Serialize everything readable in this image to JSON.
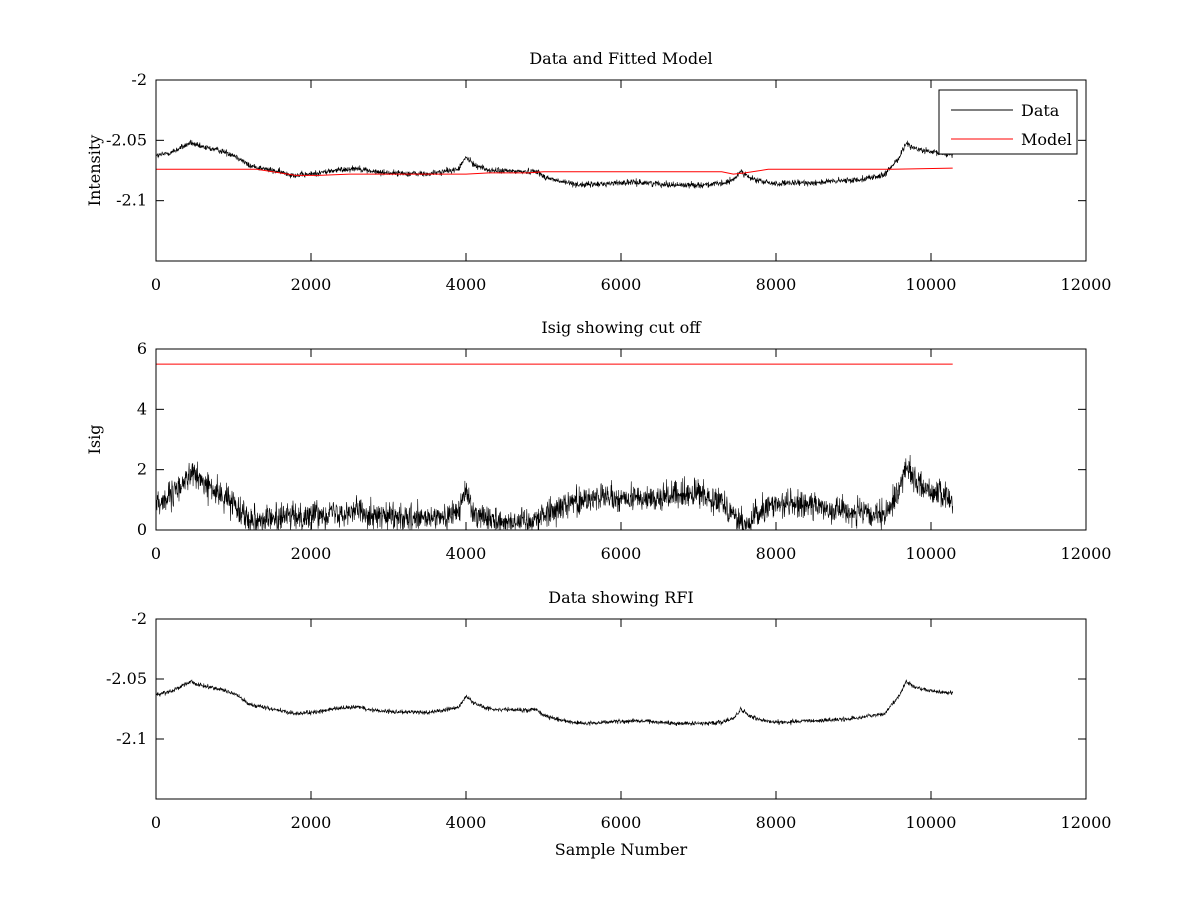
{
  "figure": {
    "background": "#ffffff"
  },
  "chart_data": [
    {
      "id": "panel1",
      "type": "line",
      "title": "Data and Fitted Model",
      "xlabel": "",
      "ylabel": "Intensity",
      "xlim": [
        0,
        12000
      ],
      "ylim": [
        -2.15,
        -2.0
      ],
      "xticks": [
        0,
        2000,
        4000,
        6000,
        8000,
        10000,
        12000
      ],
      "xtick_labels": [
        "0",
        "2000",
        "4000",
        "6000",
        "8000",
        "10000",
        "12000"
      ],
      "yticks": [
        -2.0,
        -2.05,
        -2.1
      ],
      "ytick_labels": [
        "-2",
        "-2.05",
        "-2.1"
      ],
      "legend": {
        "placement": "top-right",
        "entries": [
          {
            "label": "Data",
            "color": "#000000"
          },
          {
            "label": "Model",
            "color": "#ff0000"
          }
        ]
      },
      "series": [
        {
          "name": "Data",
          "color": "#000000",
          "noise": 0.0025,
          "x_max": 10280,
          "envelope_x": [
            0,
            200,
            450,
            550,
            800,
            1000,
            1100,
            1200,
            1500,
            1800,
            2000,
            2300,
            2600,
            2800,
            3000,
            3500,
            3900,
            4000,
            4100,
            4300,
            4800,
            4900,
            5000,
            5200,
            5500,
            5800,
            6000,
            6300,
            6700,
            7000,
            7300,
            7450,
            7550,
            7650,
            7800,
            8000,
            8500,
            9000,
            9400,
            9600,
            9680,
            9800,
            10000,
            10280
          ],
          "envelope_y": [
            -2.063,
            -2.06,
            -2.052,
            -2.055,
            -2.058,
            -2.062,
            -2.066,
            -2.071,
            -2.075,
            -2.079,
            -2.078,
            -2.075,
            -2.073,
            -2.076,
            -2.077,
            -2.078,
            -2.074,
            -2.064,
            -2.07,
            -2.075,
            -2.076,
            -2.075,
            -2.08,
            -2.084,
            -2.087,
            -2.086,
            -2.085,
            -2.085,
            -2.087,
            -2.087,
            -2.086,
            -2.083,
            -2.075,
            -2.081,
            -2.084,
            -2.086,
            -2.085,
            -2.083,
            -2.079,
            -2.063,
            -2.052,
            -2.057,
            -2.06,
            -2.062
          ]
        },
        {
          "name": "Model",
          "color": "#ff0000",
          "x": [
            0,
            1000,
            1300,
            1600,
            1800,
            2100,
            2500,
            3000,
            4000,
            4300,
            4800,
            5000,
            5800,
            7300,
            7450,
            7600,
            7900,
            8200,
            9500,
            10280
          ],
          "y": [
            -2.074,
            -2.074,
            -2.074,
            -2.077,
            -2.079,
            -2.079,
            -2.078,
            -2.078,
            -2.078,
            -2.077,
            -2.077,
            -2.076,
            -2.076,
            -2.076,
            -2.078,
            -2.077,
            -2.074,
            -2.074,
            -2.074,
            -2.073
          ]
        }
      ]
    },
    {
      "id": "panel2",
      "type": "line",
      "title": "Isig showing cut off",
      "xlabel": "",
      "ylabel": "Isig",
      "xlim": [
        0,
        12000
      ],
      "ylim": [
        0,
        6
      ],
      "xticks": [
        0,
        2000,
        4000,
        6000,
        8000,
        10000,
        12000
      ],
      "xtick_labels": [
        "0",
        "2000",
        "4000",
        "6000",
        "8000",
        "10000",
        "12000"
      ],
      "yticks": [
        0,
        2,
        4,
        6
      ],
      "ytick_labels": [
        "0",
        "2",
        "4",
        "6"
      ],
      "series": [
        {
          "name": "Isig",
          "color": "#000000",
          "noise": 0.45,
          "clip_min": 0,
          "x_max": 10280,
          "envelope_x": [
            0,
            200,
            450,
            550,
            800,
            1000,
            1150,
            1300,
            1600,
            2000,
            2300,
            2600,
            2900,
            3300,
            3700,
            3900,
            4000,
            4100,
            4400,
            4800,
            5000,
            5300,
            5700,
            6000,
            6500,
            7000,
            7300,
            7450,
            7600,
            7750,
            8000,
            8500,
            9000,
            9400,
            9600,
            9680,
            9800,
            10000,
            10280
          ],
          "envelope_y": [
            0.9,
            1.1,
            1.9,
            1.7,
            1.2,
            0.9,
            0.5,
            0.35,
            0.4,
            0.5,
            0.6,
            0.65,
            0.45,
            0.35,
            0.4,
            0.6,
            1.3,
            0.6,
            0.3,
            0.3,
            0.5,
            0.9,
            1.1,
            1.0,
            1.1,
            1.2,
            1.0,
            0.5,
            0.1,
            0.5,
            0.9,
            0.8,
            0.6,
            0.4,
            1.4,
            2.2,
            1.6,
            1.3,
            1.0
          ]
        },
        {
          "name": "Cut off",
          "color": "#ff0000",
          "x": [
            0,
            10280
          ],
          "y": [
            5.5,
            5.5
          ]
        }
      ]
    },
    {
      "id": "panel3",
      "type": "line",
      "title": "Data showing RFI",
      "xlabel": "Sample Number",
      "ylabel": "",
      "xlim": [
        0,
        12000
      ],
      "ylim": [
        -2.15,
        -2.0
      ],
      "xticks": [
        0,
        2000,
        4000,
        6000,
        8000,
        10000,
        12000
      ],
      "xtick_labels": [
        "0",
        "2000",
        "4000",
        "6000",
        "8000",
        "10000",
        "12000"
      ],
      "yticks": [
        -2.0,
        -2.05,
        -2.1
      ],
      "ytick_labels": [
        "-2",
        "-2.05",
        "-2.1"
      ],
      "series": [
        {
          "name": "Data",
          "color": "#000000",
          "noise": 0.0018,
          "x_max": 10280,
          "envelope_x": [
            0,
            200,
            450,
            550,
            800,
            1000,
            1100,
            1200,
            1500,
            1800,
            2000,
            2300,
            2600,
            2800,
            3000,
            3500,
            3900,
            4000,
            4100,
            4300,
            4800,
            4900,
            5000,
            5200,
            5500,
            5800,
            6000,
            6300,
            6700,
            7000,
            7300,
            7450,
            7550,
            7650,
            7800,
            8000,
            8500,
            9000,
            9400,
            9600,
            9680,
            9800,
            10000,
            10280
          ],
          "envelope_y": [
            -2.063,
            -2.06,
            -2.052,
            -2.055,
            -2.058,
            -2.062,
            -2.066,
            -2.071,
            -2.075,
            -2.079,
            -2.078,
            -2.075,
            -2.073,
            -2.076,
            -2.077,
            -2.078,
            -2.074,
            -2.064,
            -2.07,
            -2.075,
            -2.076,
            -2.075,
            -2.08,
            -2.084,
            -2.087,
            -2.086,
            -2.085,
            -2.085,
            -2.087,
            -2.087,
            -2.086,
            -2.083,
            -2.075,
            -2.081,
            -2.084,
            -2.086,
            -2.085,
            -2.083,
            -2.079,
            -2.063,
            -2.052,
            -2.057,
            -2.06,
            -2.062
          ]
        }
      ]
    }
  ]
}
